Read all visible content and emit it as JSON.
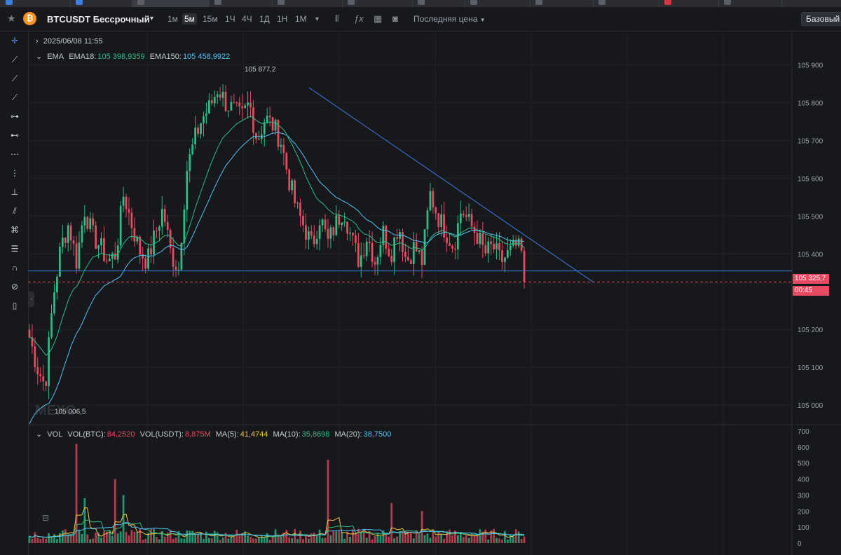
{
  "window": {
    "tabs": [
      {
        "label": "",
        "icon": "favicon-icon"
      },
      {
        "label": "",
        "icon": "favicon-icon"
      },
      {
        "label": "",
        "icon": "favicon-icon"
      },
      {
        "label": "",
        "icon": "favicon-icon"
      },
      {
        "label": "",
        "icon": "favicon-icon"
      },
      {
        "label": "",
        "icon": "favicon-icon"
      },
      {
        "label": "",
        "icon": "favicon-icon"
      },
      {
        "label": "",
        "icon": "favicon-icon"
      },
      {
        "label": "",
        "icon": "favicon-icon"
      },
      {
        "label": "",
        "icon": "favicon-icon"
      },
      {
        "label": "",
        "icon": "favicon-icon"
      },
      {
        "label": "",
        "icon": "favicon-icon"
      }
    ]
  },
  "header": {
    "symbol": "BTCUSDT Бессрочный",
    "logo_letter": "₿",
    "intervals": [
      "1м",
      "5м",
      "15м",
      "1Ч",
      "4Ч",
      "1Д",
      "1Н",
      "1М"
    ],
    "active_interval": "5м",
    "price_type": "Последняя цена",
    "base_button": "Базовый"
  },
  "legend": {
    "date": "2025/06/08 11:55",
    "ema_label": "EMA",
    "ema18_label": "EMA18:",
    "ema18_value": "105 398,9359",
    "ema150_label": "EMA150:",
    "ema150_value": "105 458,9922",
    "vol_label": "VOL",
    "vol_btc_label": "VOL(BTC):",
    "vol_btc_value": "84,2520",
    "vol_usdt_label": "VOL(USDT):",
    "vol_usdt_value": "8,875M",
    "ma5_label": "MA(5):",
    "ma5_value": "41,4744",
    "ma10_label": "MA(10):",
    "ma10_value": "35,8698",
    "ma20_label": "MA(20):",
    "ma20_value": "38,7500"
  },
  "price_badge": {
    "price": "105 325,7",
    "countdown": "00:45"
  },
  "watermark": "MEXC",
  "colors": {
    "up": "#2ebd85",
    "down": "#e84a5f",
    "ema18": "#2ebd85",
    "ema150": "#4fc3f7",
    "trendline": "#3d7be5",
    "ma5": "#f5c542",
    "ma10": "#2ebd85",
    "ma20": "#4fc3f7"
  },
  "chart_data": {
    "type": "candlestick",
    "title": "BTCUSDT Бессрочный",
    "timeframe": "5м",
    "price_axis_ticks": [
      105000,
      105100,
      105200,
      105400,
      105500,
      105600,
      105700,
      105800,
      105900
    ],
    "price_axis_labels": [
      "105 000",
      "105 100",
      "105 200",
      "105 400",
      "105 500",
      "105 600",
      "105 700",
      "105 800",
      "105 900"
    ],
    "ylim": [
      104950,
      105970
    ],
    "last_price": 105325.7,
    "high_marker": {
      "value": 105877.2,
      "label": "105 877,2"
    },
    "low_marker": {
      "value": 105006.5,
      "label": "105 006,5"
    },
    "horizontal_support": 105355,
    "descending_trendline": {
      "from_price": 105840,
      "to_price": 105325
    },
    "close_path": [
      105180,
      105100,
      105050,
      105280,
      105420,
      105480,
      105380,
      105520,
      105450,
      105420,
      105380,
      105400,
      105560,
      105480,
      105410,
      105380,
      105450,
      105520,
      105400,
      105360,
      105620,
      105700,
      105760,
      105790,
      105840,
      105800,
      105780,
      105760,
      105800,
      105700,
      105760,
      105740,
      105700,
      105600,
      105520,
      105470,
      105420,
      105500,
      105430,
      105480,
      105520,
      105440,
      105380,
      105450,
      105380,
      105460,
      105400,
      105480,
      105380,
      105420,
      105380,
      105560,
      105500,
      105460,
      105420,
      105520,
      105480,
      105450,
      105400,
      105420,
      105380,
      105400,
      105420,
      105390
    ],
    "volume_axis_ticks": [
      0,
      100,
      200,
      300,
      400,
      500,
      600,
      700
    ],
    "volume_ylim": [
      0,
      700
    ],
    "volume_spikes": [
      {
        "index": 6,
        "value": 620
      },
      {
        "index": 7,
        "value": 280
      },
      {
        "index": 11,
        "value": 400
      },
      {
        "index": 12,
        "value": 300
      },
      {
        "index": 38,
        "value": 520
      },
      {
        "index": 46,
        "value": 250
      },
      {
        "index": 50,
        "value": 200
      }
    ]
  }
}
